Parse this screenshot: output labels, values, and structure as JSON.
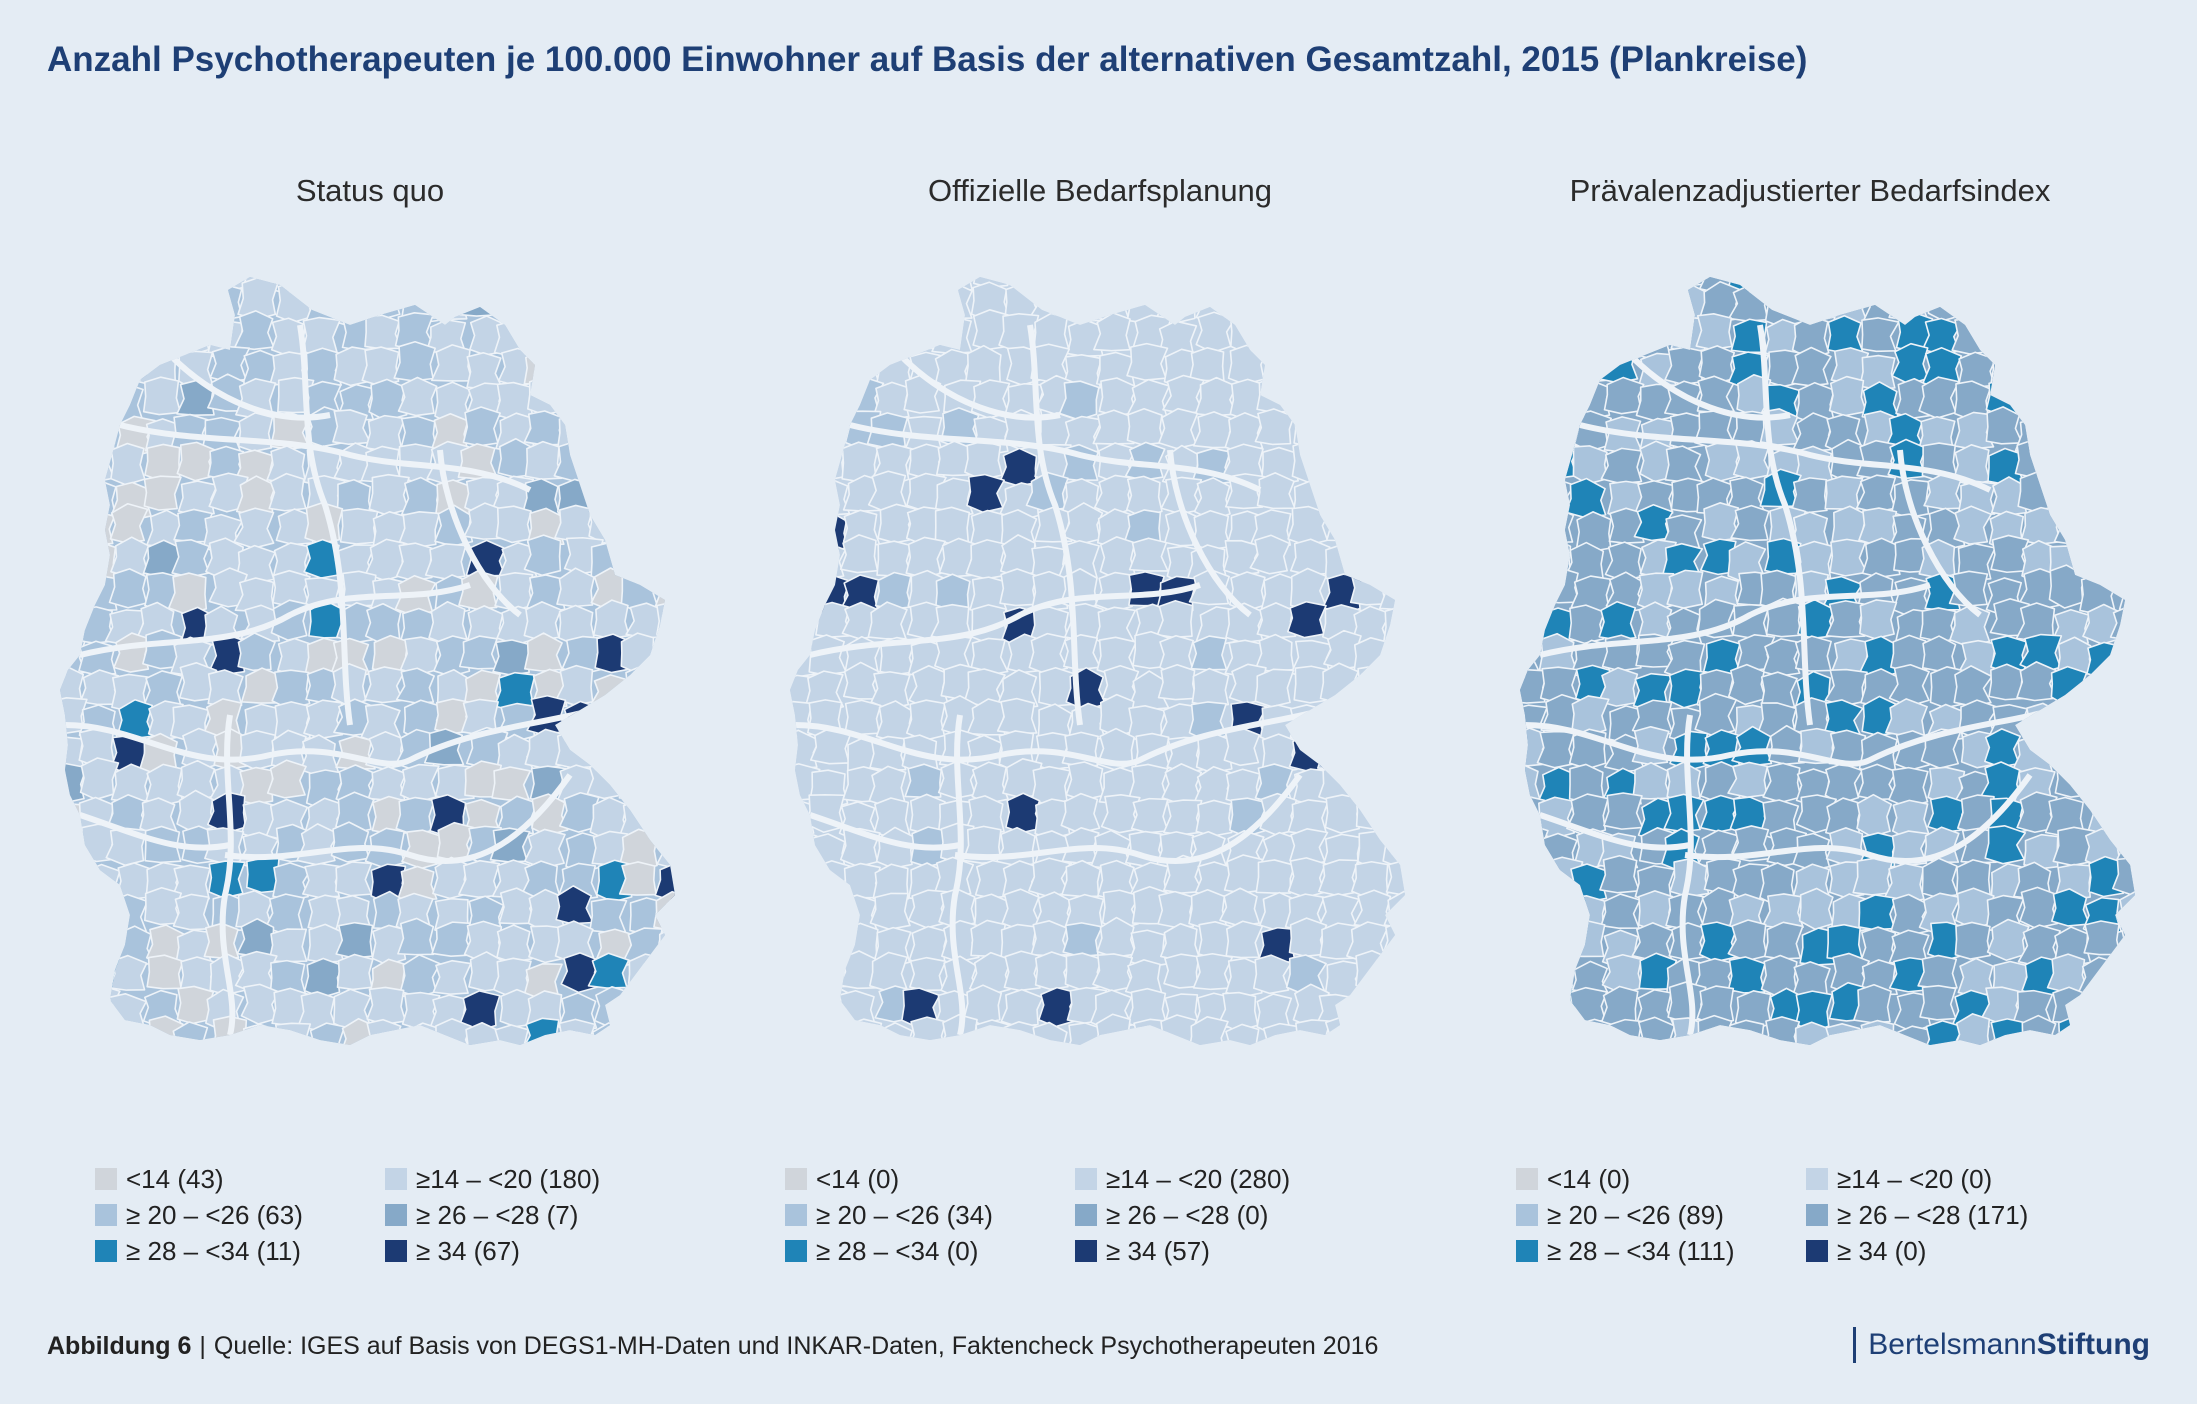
{
  "title": "Anzahl Psychotherapeuten je 100.000 Einwohner auf Basis der alternativen Gesamtzahl, 2015 (Plankreise)",
  "colors": {
    "lt14": "#d0d5db",
    "c14_20": "#c3d4e6",
    "c20_26": "#a9c3dc",
    "c26_28": "#86a9c8",
    "c28_34": "#1f84b7",
    "ge34": "#1c3a73",
    "border": "#eef3f8"
  },
  "maps": [
    {
      "title": "Status quo",
      "base_class": "c20_26",
      "legend": [
        {
          "label": "<14 (43)",
          "color_key": "lt14"
        },
        {
          "label": "≥14 – <20 (180)",
          "color_key": "c14_20"
        },
        {
          "label": "≥ 20 – <26 (63)",
          "color_key": "c20_26"
        },
        {
          "label": "≥ 26 – <28 (7)",
          "color_key": "c26_28"
        },
        {
          "label": "≥ 28 – <34 (11)",
          "color_key": "c28_34"
        },
        {
          "label": "≥ 34 (67)",
          "color_key": "ge34"
        }
      ]
    },
    {
      "title": "Offizielle Bedarfsplanung",
      "base_class": "c14_20",
      "legend": [
        {
          "label": "<14 (0)",
          "color_key": "lt14"
        },
        {
          "label": "≥14 – <20 (280)",
          "color_key": "c14_20"
        },
        {
          "label": "≥ 20 – <26 (34)",
          "color_key": "c20_26"
        },
        {
          "label": "≥ 26 – <28 (0)",
          "color_key": "c26_28"
        },
        {
          "label": "≥ 28 – <34 (0)",
          "color_key": "c28_34"
        },
        {
          "label": "≥ 34 (57)",
          "color_key": "ge34"
        }
      ]
    },
    {
      "title": "Prävalenzadjustierter Bedarfsindex",
      "base_class": "c26_28",
      "legend": [
        {
          "label": "<14 (0)",
          "color_key": "lt14"
        },
        {
          "label": "≥14 – <20 (0)",
          "color_key": "c14_20"
        },
        {
          "label": "≥ 20 – <26 (89)",
          "color_key": "c20_26"
        },
        {
          "label": "≥ 26 – <28 (171)",
          "color_key": "c26_28"
        },
        {
          "label": "≥ 28 – <34 (111)",
          "color_key": "c28_34"
        },
        {
          "label": "≥ 34 (0)",
          "color_key": "ge34"
        }
      ]
    }
  ],
  "footer": {
    "figure": "Abbildung 6",
    "separator": "|",
    "source": "Quelle: IGES auf Basis von DEGS1-MH-Daten und INKAR-Daten, Faktencheck Psychotherapeuten 2016"
  },
  "brand": {
    "part1": "Bertelsmann",
    "part2": "Stiftung"
  }
}
